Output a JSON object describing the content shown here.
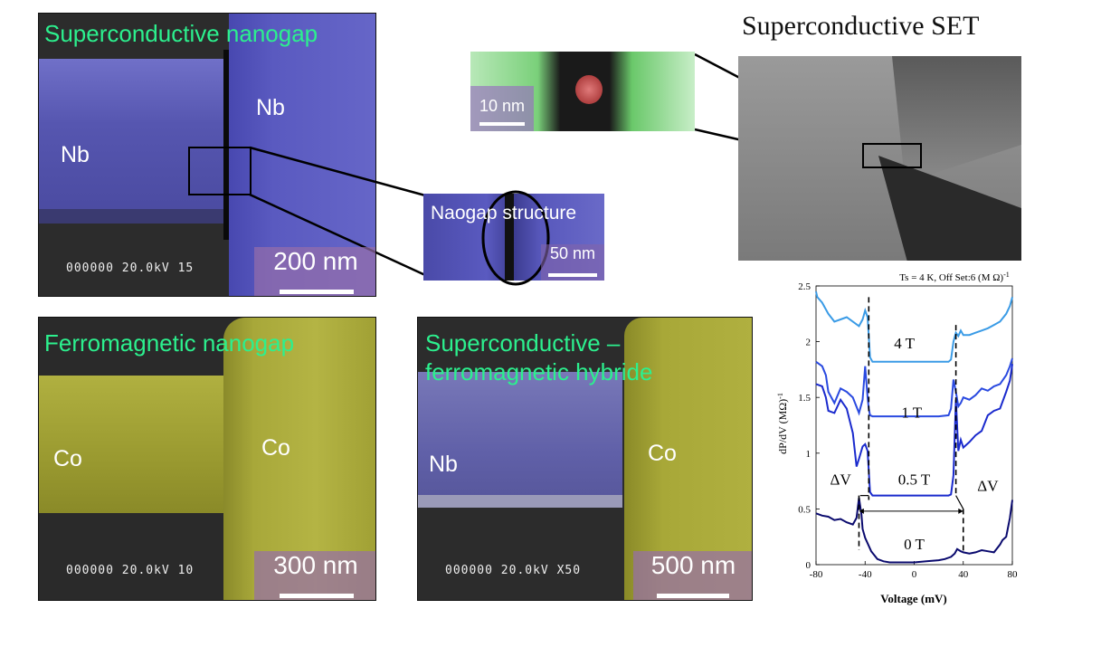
{
  "panels": {
    "sc_nanogap": {
      "title": "Superconductive nanogap",
      "left_label": "Nb",
      "right_label": "Nb",
      "sem_info": "000000 20.0kV  15",
      "scale_label": "200 nm"
    },
    "zoom_inset": {
      "title": "Naogap structure",
      "scale_label": "50 nm"
    },
    "tem_inset": {
      "scale_label": "10 nm"
    },
    "set": {
      "title": "Superconductive SET"
    },
    "fm_nanogap": {
      "title": "Ferromagnetic nanogap",
      "left_label": "Co",
      "right_label": "Co",
      "sem_info": "000000 20.0kV  10",
      "scale_label": "300 nm"
    },
    "hybrid": {
      "title_line1": "Superconductive –",
      "title_line2": "ferromagnetic hybride",
      "left_label": "Nb",
      "right_label": "Co",
      "sem_info": "000000 20.0kV X50",
      "scale_label": "500 nm"
    }
  },
  "colors": {
    "title_green": "#2cf08e",
    "nb_blue": "#5a5ab8",
    "co_yellow": "#a8a830",
    "sem_gray": "#2a2a2a"
  },
  "chart_data": {
    "type": "line",
    "title": "Ts = 4 K, Off Set:6 (M Ω)",
    "title_sup": "-1",
    "xlabel": "Voltage (mV)",
    "ylabel": "dP/dV (MΩ)",
    "ylabel_sup": "-1",
    "xlim": [
      -80,
      80
    ],
    "ylim": [
      0,
      2.5
    ],
    "xticks": [
      "-80",
      "-40",
      "0",
      "40",
      "80"
    ],
    "yticks": [
      "0",
      "0.5",
      "1",
      "1.5",
      "2",
      "2.5"
    ],
    "annotations": {
      "delta_left": "ΔV",
      "delta_right": "ΔV"
    },
    "series": [
      {
        "name": "0 T",
        "color": "#0a0a6e",
        "label_pos": [
          0,
          0.14
        ],
        "x": [
          -80,
          -75,
          -70,
          -65,
          -60,
          -55,
          -50,
          -47,
          -45,
          -43,
          -42,
          -40,
          -35,
          -30,
          -25,
          -20,
          -10,
          0,
          10,
          20,
          25,
          30,
          33,
          35,
          38,
          40,
          45,
          50,
          55,
          60,
          65,
          70,
          72,
          75,
          78,
          80
        ],
        "y": [
          0.46,
          0.44,
          0.43,
          0.4,
          0.41,
          0.38,
          0.36,
          0.42,
          0.6,
          0.45,
          0.32,
          0.24,
          0.12,
          0.05,
          0.03,
          0.02,
          0.02,
          0.02,
          0.03,
          0.04,
          0.05,
          0.07,
          0.1,
          0.14,
          0.12,
          0.11,
          0.1,
          0.11,
          0.13,
          0.12,
          0.11,
          0.18,
          0.22,
          0.25,
          0.42,
          0.58
        ]
      },
      {
        "name": "0.5 T",
        "color": "#1a2acd",
        "label_pos": [
          0,
          0.72
        ],
        "x": [
          -80,
          -75,
          -72,
          -70,
          -65,
          -60,
          -55,
          -50,
          -47,
          -45,
          -42,
          -40,
          -38,
          -37,
          -36,
          -34,
          -30,
          -20,
          -10,
          0,
          10,
          20,
          28,
          30,
          32,
          34,
          36,
          38,
          40,
          45,
          50,
          55,
          60,
          65,
          70,
          75,
          78,
          80
        ],
        "y": [
          1.62,
          1.6,
          1.5,
          1.38,
          1.36,
          1.48,
          1.4,
          1.18,
          0.88,
          0.95,
          1.06,
          1.08,
          1.02,
          0.84,
          0.65,
          0.62,
          0.62,
          0.62,
          0.62,
          0.62,
          0.62,
          0.62,
          0.62,
          0.63,
          0.8,
          1.48,
          1.02,
          1.12,
          1.05,
          1.1,
          1.16,
          1.2,
          1.34,
          1.38,
          1.4,
          1.55,
          1.65,
          1.8
        ]
      },
      {
        "name": "1 T",
        "color": "#2a4ae0",
        "label_pos": [
          -2,
          1.32
        ],
        "x": [
          -80,
          -75,
          -72,
          -70,
          -65,
          -60,
          -55,
          -50,
          -45,
          -42,
          -40,
          -38,
          -37,
          -36,
          -34,
          -30,
          -20,
          -10,
          0,
          10,
          20,
          28,
          30,
          32,
          34,
          36,
          38,
          40,
          45,
          50,
          55,
          60,
          65,
          70,
          75,
          78,
          80
        ],
        "y": [
          1.82,
          1.78,
          1.7,
          1.55,
          1.45,
          1.58,
          1.55,
          1.5,
          1.36,
          1.48,
          1.78,
          1.5,
          1.4,
          1.34,
          1.33,
          1.33,
          1.33,
          1.33,
          1.33,
          1.33,
          1.33,
          1.34,
          1.4,
          1.66,
          1.55,
          1.42,
          1.45,
          1.5,
          1.48,
          1.52,
          1.58,
          1.56,
          1.6,
          1.62,
          1.7,
          1.78,
          1.85
        ]
      },
      {
        "name": "4 T",
        "color": "#3a9be6",
        "label_pos": [
          -8,
          1.94
        ],
        "x": [
          -80,
          -79,
          -75,
          -70,
          -65,
          -60,
          -55,
          -50,
          -45,
          -42,
          -40,
          -38,
          -37,
          -36,
          -34,
          -30,
          -20,
          -10,
          0,
          10,
          20,
          28,
          30,
          32,
          34,
          36,
          38,
          40,
          45,
          50,
          55,
          60,
          65,
          70,
          75,
          78,
          80
        ],
        "y": [
          2.45,
          2.4,
          2.35,
          2.25,
          2.18,
          2.2,
          2.22,
          2.18,
          2.14,
          2.2,
          2.28,
          2.22,
          2.05,
          1.86,
          1.82,
          1.82,
          1.82,
          1.82,
          1.82,
          1.82,
          1.82,
          1.82,
          1.84,
          2.0,
          2.08,
          2.05,
          2.1,
          2.06,
          2.06,
          2.08,
          2.1,
          2.12,
          2.15,
          2.18,
          2.25,
          2.32,
          2.4
        ]
      }
    ]
  }
}
